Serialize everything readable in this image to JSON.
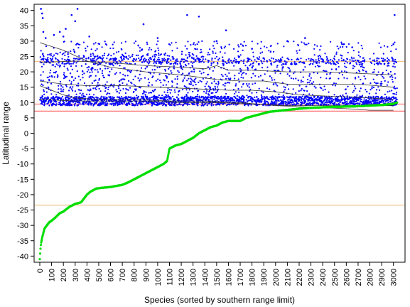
{
  "chart_data": {
    "type": "scatter",
    "xlabel": "Species (sorted by southern range limit)",
    "ylabel": "Latitudinal range",
    "xlim": [
      0,
      3050
    ],
    "ylim": [
      -42,
      42
    ],
    "x_ticks": [
      0,
      100,
      200,
      300,
      400,
      500,
      600,
      700,
      800,
      900,
      1000,
      1100,
      1200,
      1300,
      1400,
      1500,
      1600,
      1700,
      1800,
      1900,
      2000,
      2100,
      2200,
      2300,
      2400,
      2500,
      2600,
      2700,
      2800,
      2900,
      3000
    ],
    "y_ticks": [
      -40,
      -35,
      -30,
      -25,
      -20,
      -15,
      -10,
      -5,
      0,
      5,
      10,
      15,
      20,
      25,
      30,
      35,
      40
    ],
    "reference_lines": [
      {
        "y": 23.4,
        "color": "#f5c38a"
      },
      {
        "y": -23.4,
        "color": "#f5c38a"
      },
      {
        "y": 9.5,
        "color": "#ff6b6b"
      },
      {
        "y": 7.2,
        "color": "#ff6b6b"
      }
    ],
    "series": [
      {
        "name": "",
        "color": "#00dd00",
        "marker": "point",
        "points": [
          [
            0,
            -41
          ],
          [
            5,
            -38
          ],
          [
            10,
            -36
          ],
          [
            20,
            -34
          ],
          [
            40,
            -31
          ],
          [
            60,
            -30
          ],
          [
            80,
            -29
          ],
          [
            100,
            -28.5
          ],
          [
            130,
            -27.5
          ],
          [
            170,
            -26
          ],
          [
            200,
            -25.5
          ],
          [
            250,
            -24
          ],
          [
            300,
            -23
          ],
          [
            350,
            -22.5
          ],
          [
            380,
            -21
          ],
          [
            400,
            -20
          ],
          [
            430,
            -19
          ],
          [
            480,
            -18
          ],
          [
            520,
            -17.8
          ],
          [
            600,
            -17.5
          ],
          [
            700,
            -16.8
          ],
          [
            750,
            -16
          ],
          [
            800,
            -15
          ],
          [
            850,
            -14
          ],
          [
            900,
            -13
          ],
          [
            950,
            -12
          ],
          [
            1000,
            -11
          ],
          [
            1050,
            -10
          ],
          [
            1080,
            -9
          ],
          [
            1090,
            -7
          ],
          [
            1100,
            -5
          ],
          [
            1150,
            -4
          ],
          [
            1200,
            -3.5
          ],
          [
            1250,
            -2.5
          ],
          [
            1300,
            -1.5
          ],
          [
            1350,
            0
          ],
          [
            1400,
            1
          ],
          [
            1450,
            2
          ],
          [
            1500,
            2.5
          ],
          [
            1550,
            3.5
          ],
          [
            1600,
            4
          ],
          [
            1700,
            4
          ],
          [
            1750,
            5
          ],
          [
            1800,
            5.5
          ],
          [
            1900,
            6.5
          ],
          [
            1950,
            7
          ],
          [
            2000,
            7.2
          ],
          [
            2100,
            7.6
          ],
          [
            2200,
            8
          ],
          [
            2300,
            8.3
          ],
          [
            2500,
            8.6
          ],
          [
            2700,
            8.8
          ],
          [
            2900,
            9.2
          ],
          [
            3000,
            9.6
          ],
          [
            3030,
            10
          ]
        ]
      },
      {
        "name": "",
        "color": "#0000ff",
        "marker": "point",
        "points": [
          [
            10,
            40.5
          ],
          [
            20,
            39
          ],
          [
            25,
            37.5
          ],
          [
            30,
            33
          ],
          [
            50,
            31
          ],
          [
            120,
            32
          ],
          [
            170,
            33
          ],
          [
            200,
            31.5
          ],
          [
            220,
            34
          ],
          [
            270,
            38.5
          ],
          [
            300,
            36.5
          ],
          [
            320,
            40.5
          ],
          [
            420,
            31.5
          ],
          [
            880,
            35.5
          ],
          [
            1000,
            31
          ],
          [
            1250,
            38.5
          ],
          [
            1350,
            38
          ],
          [
            1500,
            30
          ],
          [
            2100,
            30
          ],
          [
            2250,
            31
          ],
          [
            2580,
            29
          ],
          [
            3010,
            38.5
          ],
          [
            3000,
            29
          ],
          [
            1580,
            33.5
          ],
          [
            1800,
            27.5
          ],
          [
            2650,
            28
          ]
        ]
      }
    ],
    "trend_lines": [
      {
        "name": "",
        "color": "#333333",
        "points": [
          [
            0,
            29.5
          ],
          [
            200,
            27
          ],
          [
            400,
            23.5
          ],
          [
            600,
            21.5
          ],
          [
            900,
            20
          ],
          [
            1200,
            19
          ],
          [
            1400,
            18
          ],
          [
            1500,
            17.5
          ],
          [
            1700,
            17
          ],
          [
            1900,
            17
          ],
          [
            2100,
            16
          ],
          [
            2400,
            16
          ],
          [
            2700,
            16
          ],
          [
            3000,
            15
          ]
        ]
      },
      {
        "name": "",
        "color": "#333333",
        "points": [
          [
            0,
            23
          ],
          [
            300,
            23.5
          ],
          [
            600,
            23
          ],
          [
            900,
            22
          ],
          [
            1200,
            21.5
          ],
          [
            1400,
            21
          ],
          [
            1500,
            22
          ],
          [
            1600,
            20.5
          ],
          [
            1800,
            20.5
          ],
          [
            2100,
            20
          ],
          [
            2400,
            20
          ],
          [
            2700,
            19.5
          ],
          [
            3000,
            19
          ]
        ]
      },
      {
        "name": "",
        "color": "#333333",
        "points": [
          [
            0,
            17
          ],
          [
            200,
            16
          ],
          [
            400,
            15.5
          ],
          [
            700,
            15.5
          ],
          [
            1000,
            15
          ],
          [
            1300,
            14.5
          ],
          [
            1600,
            14
          ],
          [
            1800,
            14
          ],
          [
            2000,
            13.5
          ],
          [
            2200,
            12.5
          ],
          [
            2500,
            12
          ],
          [
            2800,
            11.5
          ],
          [
            3000,
            11
          ]
        ]
      },
      {
        "name": "",
        "color": "#333333",
        "points": [
          [
            0,
            15.5
          ],
          [
            100,
            14
          ],
          [
            200,
            12.5
          ],
          [
            300,
            11.5
          ],
          [
            500,
            11
          ],
          [
            800,
            11
          ],
          [
            1100,
            10.5
          ],
          [
            1400,
            10.5
          ],
          [
            1700,
            10
          ],
          [
            2000,
            9
          ],
          [
            2300,
            8.5
          ],
          [
            2600,
            8
          ],
          [
            2800,
            7.5
          ],
          [
            3000,
            7.5
          ]
        ]
      },
      {
        "name": "",
        "color": "#333333",
        "points": [
          [
            0,
            11
          ],
          [
            300,
            10.5
          ],
          [
            600,
            10.5
          ],
          [
            900,
            10.5
          ],
          [
            1200,
            10
          ],
          [
            1500,
            10
          ],
          [
            1800,
            9.5
          ],
          [
            2100,
            9
          ],
          [
            2400,
            9
          ],
          [
            2700,
            9
          ],
          [
            3000,
            9
          ]
        ]
      }
    ],
    "dense_scatter_bands": [
      {
        "y_center": 10.5,
        "y_spread": 1.5,
        "density": 0.55,
        "x_from": 0,
        "x_to": 3030
      },
      {
        "y_center": 18,
        "y_spread": 8,
        "density": 0.45,
        "x_from": 0,
        "x_to": 1500
      },
      {
        "y_center": 17,
        "y_spread": 7,
        "density": 0.3,
        "x_from": 1500,
        "x_to": 3030
      },
      {
        "y_center": 23.5,
        "y_spread": 1,
        "density": 0.12,
        "x_from": 0,
        "x_to": 3030
      },
      {
        "y_center": 27,
        "y_spread": 3,
        "density": 0.08,
        "x_from": 0,
        "x_to": 3030
      }
    ],
    "grid": false,
    "legend": "none"
  }
}
